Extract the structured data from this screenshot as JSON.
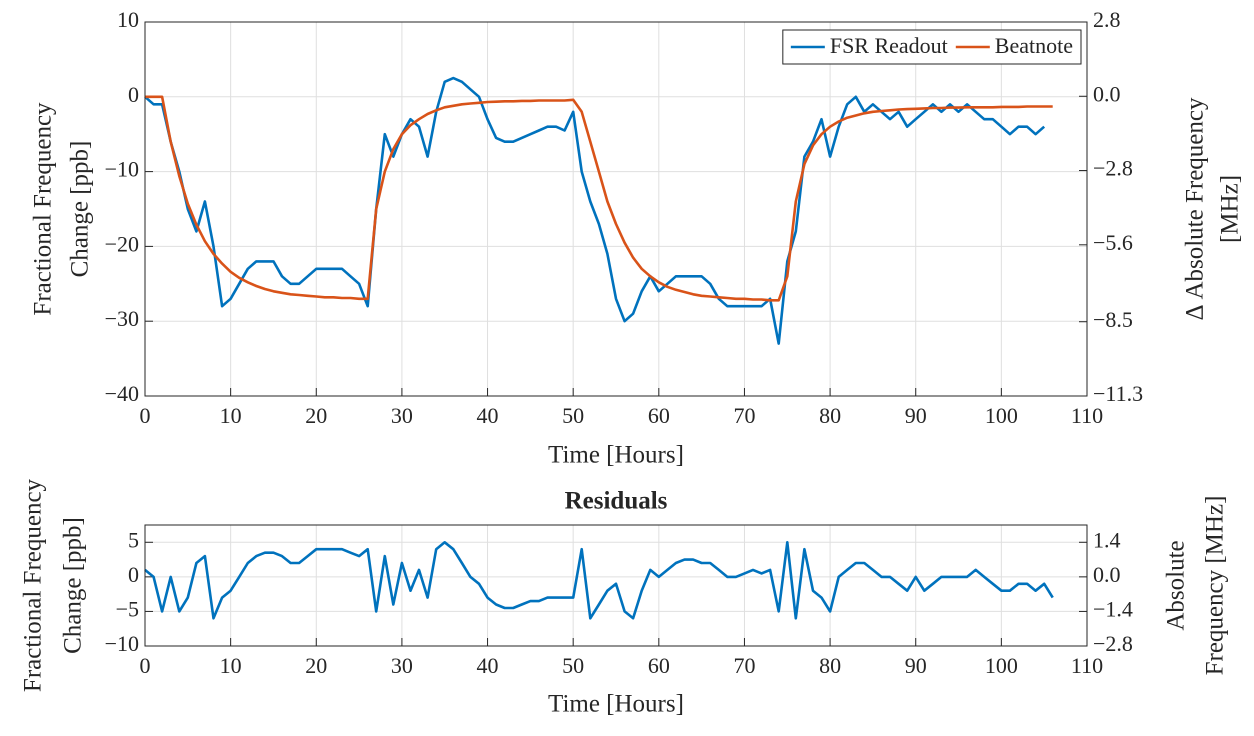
{
  "chart_data": [
    {
      "type": "line",
      "ylabel": [
        "Fractional Frequency",
        "Change [ppb]"
      ],
      "y2label": [
        "Δ Absolute Frequency",
        "[MHz]"
      ],
      "xlabel": "Time [Hours]",
      "xlim": [
        0,
        110
      ],
      "xticks": [
        0,
        10,
        20,
        30,
        40,
        50,
        60,
        70,
        80,
        90,
        100,
        110
      ],
      "ylim": [
        -40,
        10
      ],
      "yticks": [
        {
          "value": -40,
          "label": "−40"
        },
        {
          "value": -30,
          "label": "−30"
        },
        {
          "value": -20,
          "label": "−20"
        },
        {
          "value": -10,
          "label": "−10"
        },
        0,
        10
      ],
      "y2lim": [
        -11.3,
        2.8
      ],
      "y2ticks": [
        {
          "value": -11.3,
          "label": "−11.3"
        },
        {
          "value": -8.5,
          "label": "−8.5"
        },
        {
          "value": -5.6,
          "label": "−5.6"
        },
        {
          "value": -2.8,
          "label": "−2.8"
        },
        {
          "value": 0,
          "label": "0.0"
        },
        2.8
      ],
      "grid": true,
      "legend": "northeast",
      "x": [
        0,
        1,
        2,
        3,
        4,
        5,
        6,
        7,
        8,
        9,
        10,
        11,
        12,
        13,
        14,
        15,
        16,
        17,
        18,
        19,
        20,
        21,
        22,
        23,
        24,
        25,
        26,
        27,
        28,
        29,
        30,
        31,
        32,
        33,
        34,
        35,
        36,
        37,
        38,
        39,
        40,
        41,
        42,
        43,
        44,
        45,
        46,
        47,
        48,
        49,
        50,
        51,
        52,
        53,
        54,
        55,
        56,
        57,
        58,
        59,
        60,
        61,
        62,
        63,
        64,
        65,
        66,
        67,
        68,
        69,
        70,
        71,
        72,
        73,
        74,
        75,
        76,
        77,
        78,
        79,
        80,
        81,
        82,
        83,
        84,
        85,
        86,
        87,
        88,
        89,
        90,
        91,
        92,
        93,
        94,
        95,
        96,
        97,
        98,
        99,
        100,
        101,
        102,
        103,
        104,
        105,
        106
      ],
      "series": [
        {
          "name": "FSR Readout",
          "color": "#0072bd",
          "values": [
            0,
            -1,
            -1,
            -6,
            -10,
            -15,
            -18,
            -14,
            -20,
            -28,
            -27,
            -25,
            -23,
            -22,
            -22,
            -22,
            -24,
            -25,
            -25,
            -24,
            -23,
            -23,
            -23,
            -23,
            -24,
            -25,
            -28,
            -15,
            -5,
            -8,
            -5,
            -3,
            -4,
            -8,
            -2,
            2,
            2.5,
            2,
            1,
            0,
            -3,
            -5.5,
            -6,
            -6,
            -5.5,
            -5,
            -4.5,
            -4,
            -4,
            -4.5,
            -2,
            -10,
            -14,
            -17,
            -21,
            -27,
            -30,
            -29,
            -26,
            -24,
            -26,
            -25,
            -24,
            -24,
            -24,
            -24,
            -25,
            -27,
            -28,
            -28,
            -28,
            -28,
            -28,
            -27,
            -33,
            -22,
            -18,
            -8,
            -6,
            -3,
            -8,
            -4,
            -1,
            0,
            -2,
            -1,
            -2,
            -3,
            -2,
            -4,
            -3,
            -2,
            -1,
            -2,
            -1,
            -2,
            -1,
            -2,
            -3,
            -3,
            -4,
            -5,
            -4,
            -4,
            -5,
            -4,
            null
          ]
        },
        {
          "name": "Beatnote",
          "color": "#d95319",
          "values": [
            0,
            0,
            0,
            -6,
            -10.6,
            -14.3,
            -17.1,
            -19.3,
            -21,
            -22.3,
            -23.4,
            -24.2,
            -24.8,
            -25.3,
            -25.7,
            -26,
            -26.2,
            -26.4,
            -26.5,
            -26.6,
            -26.7,
            -26.8,
            -26.8,
            -26.9,
            -26.9,
            -27,
            -27,
            -15,
            -10,
            -7,
            -5,
            -3.8,
            -3,
            -2.3,
            -1.8,
            -1.4,
            -1.2,
            -1,
            -0.9,
            -0.8,
            -0.7,
            -0.65,
            -0.6,
            -0.6,
            -0.55,
            -0.55,
            -0.5,
            -0.5,
            -0.5,
            -0.5,
            -0.4,
            -2,
            -6,
            -10,
            -14,
            -17,
            -19.5,
            -21.5,
            -23,
            -24,
            -24.8,
            -25.4,
            -25.8,
            -26.1,
            -26.4,
            -26.6,
            -26.7,
            -26.8,
            -26.9,
            -27,
            -27,
            -27.1,
            -27.1,
            -27.2,
            -27.2,
            -24,
            -14,
            -9,
            -6.5,
            -5,
            -4,
            -3.3,
            -2.8,
            -2.5,
            -2.2,
            -2,
            -1.9,
            -1.8,
            -1.7,
            -1.65,
            -1.6,
            -1.55,
            -1.5,
            -1.5,
            -1.45,
            -1.45,
            -1.4,
            -1.4,
            -1.4,
            -1.4,
            -1.35,
            -1.35,
            -1.35,
            -1.3,
            -1.3,
            -1.3,
            -1.3
          ]
        }
      ]
    },
    {
      "type": "line",
      "title": "Residuals",
      "ylabel": [
        "Fractional Frequency",
        "Change [ppb]"
      ],
      "y2label": [
        "Absolute",
        "Frequency [MHz]"
      ],
      "xlabel": "Time [Hours]",
      "xlim": [
        0,
        110
      ],
      "xticks": [
        0,
        10,
        20,
        30,
        40,
        50,
        60,
        70,
        80,
        90,
        100,
        110
      ],
      "ylim": [
        -10,
        7.5
      ],
      "yticks": [
        {
          "value": -10,
          "label": "−10"
        },
        {
          "value": -5,
          "label": "−5"
        },
        0,
        5
      ],
      "y2lim": [
        -2.8,
        2.1
      ],
      "y2ticks": [
        {
          "value": -2.8,
          "label": "−2.8"
        },
        {
          "value": -1.4,
          "label": "−1.4"
        },
        {
          "value": 0,
          "label": "0.0"
        },
        1.4
      ],
      "grid": true,
      "color": "#0072bd",
      "x": [
        0,
        1,
        2,
        3,
        4,
        5,
        6,
        7,
        8,
        9,
        10,
        11,
        12,
        13,
        14,
        15,
        16,
        17,
        18,
        19,
        20,
        21,
        22,
        23,
        24,
        25,
        26,
        27,
        28,
        29,
        30,
        31,
        32,
        33,
        34,
        35,
        36,
        37,
        38,
        39,
        40,
        41,
        42,
        43,
        44,
        45,
        46,
        47,
        48,
        49,
        50,
        51,
        52,
        53,
        54,
        55,
        56,
        57,
        58,
        59,
        60,
        61,
        62,
        63,
        64,
        65,
        66,
        67,
        68,
        69,
        70,
        71,
        72,
        73,
        74,
        75,
        76,
        77,
        78,
        79,
        80,
        81,
        82,
        83,
        84,
        85,
        86,
        87,
        88,
        89,
        90,
        91,
        92,
        93,
        94,
        95,
        96,
        97,
        98,
        99,
        100,
        101,
        102,
        103,
        104,
        105,
        106
      ],
      "values": [
        1,
        0,
        -5,
        0,
        -5,
        -3,
        2,
        3,
        -6,
        -3,
        -2,
        0,
        2,
        3,
        3.5,
        3.5,
        3,
        2,
        2,
        3,
        4,
        4,
        4,
        4,
        3.5,
        3,
        4,
        -5,
        3,
        -4,
        2,
        -2,
        1,
        -3,
        4,
        5,
        4,
        2,
        0,
        -1,
        -3,
        -4,
        -4.5,
        -4.5,
        -4,
        -3.5,
        -3.5,
        -3,
        -3,
        -3,
        -3,
        4,
        -6,
        -4,
        -2,
        -1,
        -5,
        -6,
        -2,
        1,
        0,
        1,
        2,
        2.5,
        2.5,
        2,
        2,
        1,
        0,
        0,
        0.5,
        1,
        0.5,
        1,
        -5,
        5,
        -6,
        4,
        -2,
        -3,
        -5,
        0,
        1,
        2,
        2,
        1,
        0,
        0,
        -1,
        -2,
        0,
        -2,
        -1,
        0,
        0,
        0,
        0,
        1,
        0,
        -1,
        -2,
        -2,
        -1,
        -1,
        -2,
        -1,
        -3
      ]
    }
  ]
}
